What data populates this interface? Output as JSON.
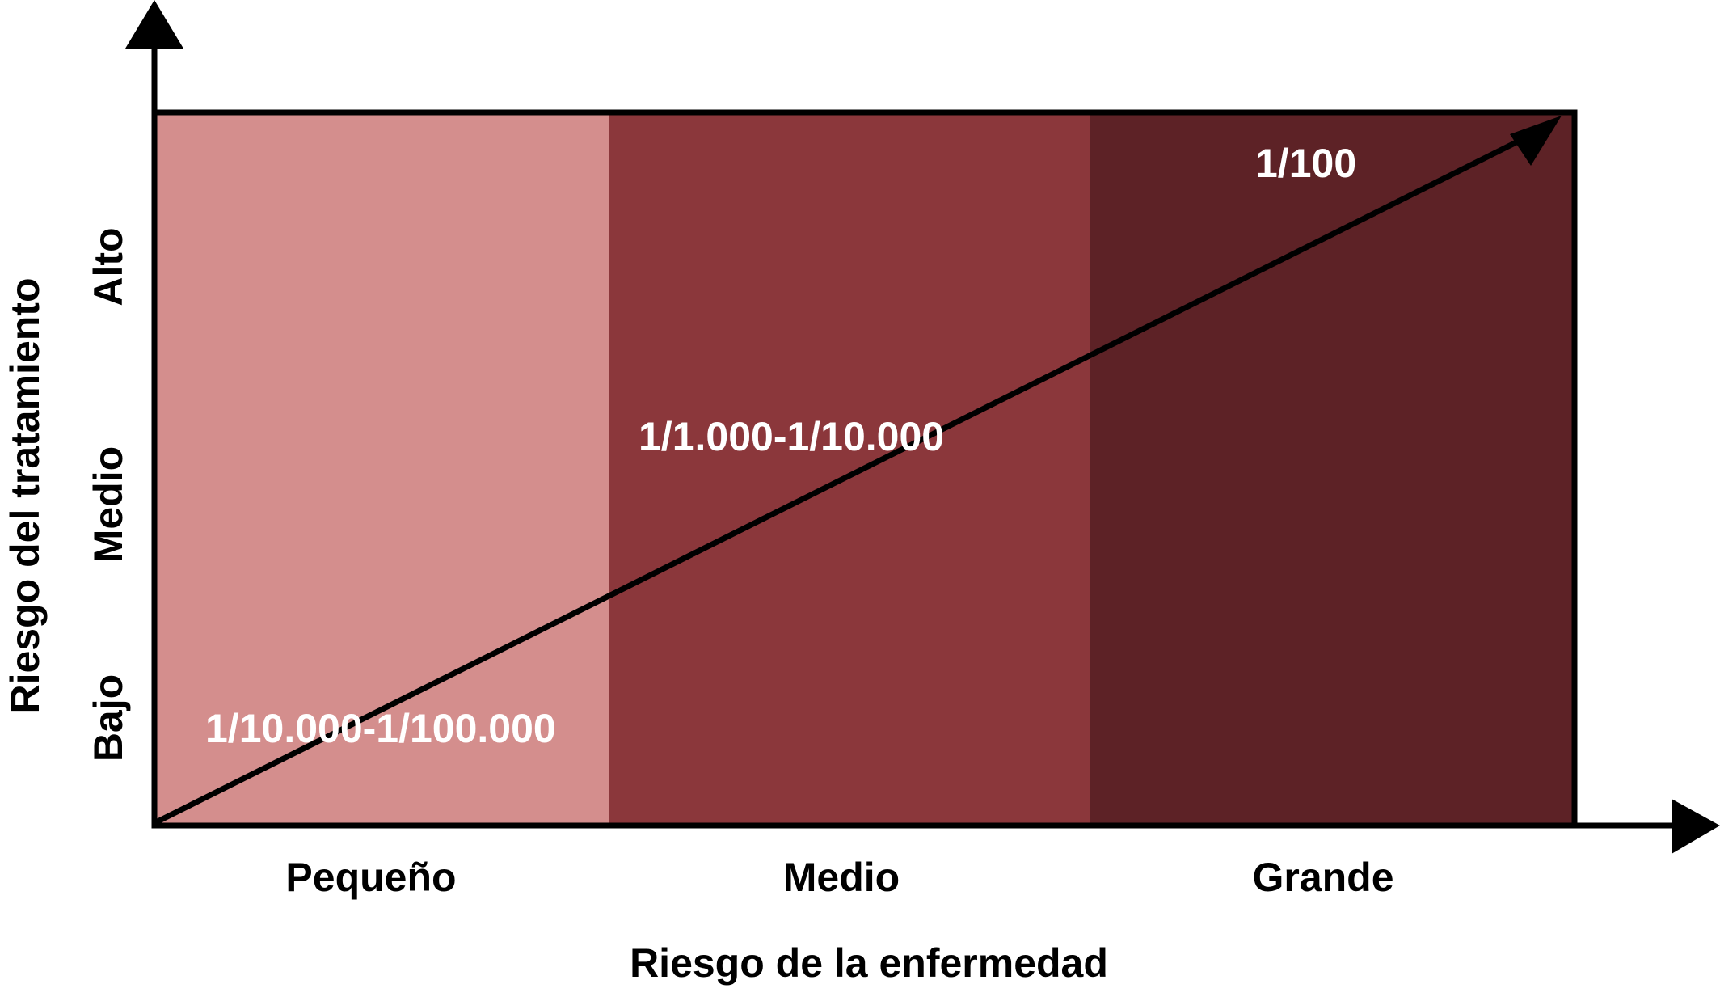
{
  "colors": {
    "band_small": "#d48e8d",
    "band_medium": "#8b373b",
    "band_large": "#5d2226",
    "axis": "#000000",
    "zone_text": "#ffffff"
  },
  "x_axis": {
    "title": "Riesgo de la enfermedad",
    "categories": [
      "Pequeño",
      "Medio",
      "Grande"
    ]
  },
  "y_axis": {
    "title": "Riesgo del tratamiento",
    "categories": [
      "Bajo",
      "Medio",
      "Alto"
    ]
  },
  "zones": {
    "low": "1/10.000-1/100.000",
    "medium": "1/1.000-1/10.000",
    "high": "1/100"
  }
}
